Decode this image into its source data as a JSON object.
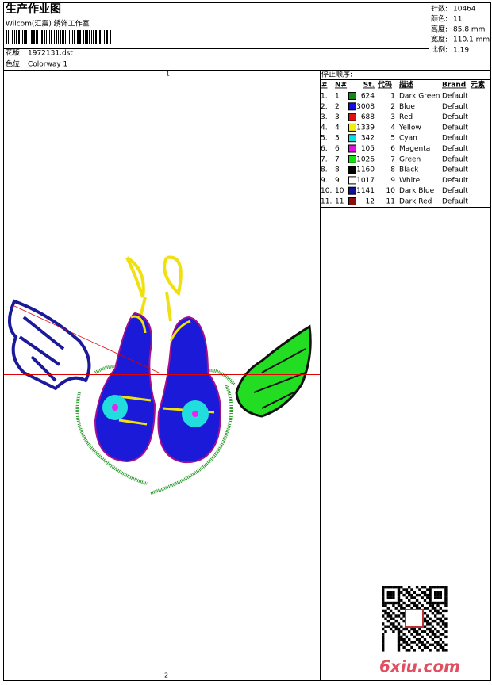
{
  "header": {
    "title": "生产作业图",
    "studio": "Wilcom(汇震) 绣饰工作室",
    "design_label": "花版:",
    "design": "1972131.dst",
    "colorway_label": "色位:",
    "colorway": "Colorway 1"
  },
  "info": [
    {
      "label": "针数:",
      "value": "10464"
    },
    {
      "label": "颜色:",
      "value": "11"
    },
    {
      "label": "高度:",
      "value": "85.8 mm"
    },
    {
      "label": "宽度:",
      "value": "110.1 mm"
    },
    {
      "label": "比例:",
      "value": "1.19"
    }
  ],
  "canvas": {
    "top_marker": "1",
    "bottom_marker": "2"
  },
  "stop_sequence": {
    "title": "停止顺序:",
    "headers": [
      "#",
      "N#",
      "St.",
      "代码",
      "描述",
      "Brand",
      "元素"
    ],
    "rows": [
      {
        "index": "1.",
        "n": "1",
        "color": "#108a10",
        "stitches": "624",
        "code": "1",
        "name": "Dark Green",
        "brand": "Default"
      },
      {
        "index": "2.",
        "n": "2",
        "color": "#1010e0",
        "stitches": "3008",
        "code": "2",
        "name": "Blue",
        "brand": "Default"
      },
      {
        "index": "3.",
        "n": "3",
        "color": "#e01010",
        "stitches": "688",
        "code": "3",
        "name": "Red",
        "brand": "Default"
      },
      {
        "index": "4.",
        "n": "4",
        "color": "#f0f010",
        "stitches": "1339",
        "code": "4",
        "name": "Yellow",
        "brand": "Default"
      },
      {
        "index": "5.",
        "n": "5",
        "color": "#10e0e0",
        "stitches": "342",
        "code": "5",
        "name": "Cyan",
        "brand": "Default"
      },
      {
        "index": "6.",
        "n": "6",
        "color": "#e010e0",
        "stitches": "105",
        "code": "6",
        "name": "Magenta",
        "brand": "Default"
      },
      {
        "index": "7.",
        "n": "7",
        "color": "#10e010",
        "stitches": "1026",
        "code": "7",
        "name": "Green",
        "brand": "Default"
      },
      {
        "index": "8.",
        "n": "8",
        "color": "#000000",
        "stitches": "1160",
        "code": "8",
        "name": "Black",
        "brand": "Default"
      },
      {
        "index": "9.",
        "n": "9",
        "color": "#ffffff",
        "stitches": "1017",
        "code": "9",
        "name": "White",
        "brand": "Default"
      },
      {
        "index": "10.",
        "n": "10",
        "color": "#10109a",
        "stitches": "1141",
        "code": "10",
        "name": "Dark Blue",
        "brand": "Default"
      },
      {
        "index": "11.",
        "n": "11",
        "color": "#8a1010",
        "stitches": "12",
        "code": "11",
        "name": "Dark Red",
        "brand": "Default"
      }
    ]
  },
  "watermark": "6xiu.com"
}
